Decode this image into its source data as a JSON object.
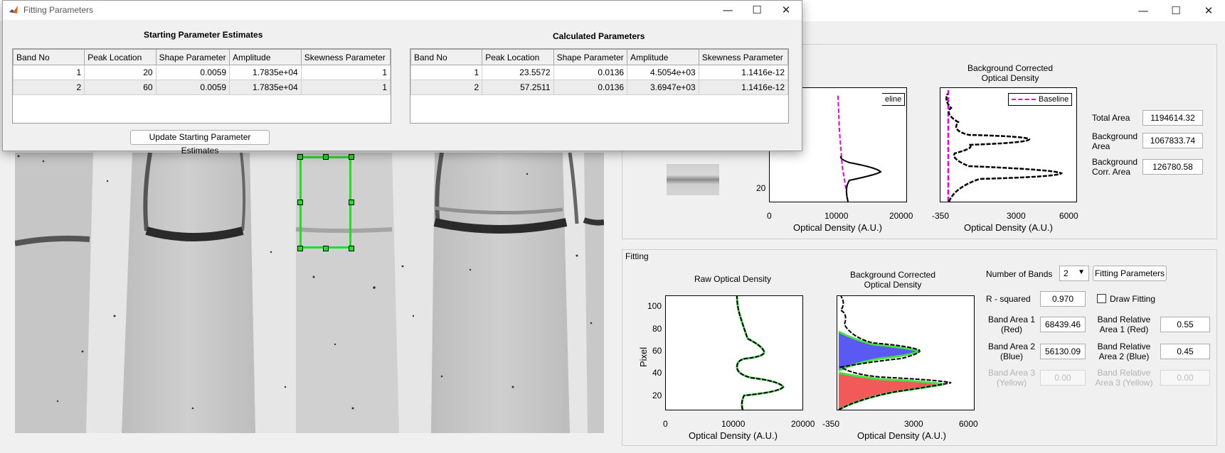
{
  "dialog": {
    "title": "Fitting Parameters",
    "start_title": "Starting Parameter Estimates",
    "calc_title": "Calculated Parameters",
    "columns": [
      "Band No",
      "Peak Location",
      "Shape Parameter",
      "Amplitude",
      "Skewness Parameter"
    ],
    "start_rows": [
      [
        "1",
        "20",
        "0.0059",
        "1.7835e+04",
        "1"
      ],
      [
        "2",
        "60",
        "0.0059",
        "1.7835e+04",
        "1"
      ]
    ],
    "calc_rows": [
      [
        "1",
        "23.5572",
        "0.0136",
        "4.5054e+03",
        "1.1416e-12"
      ],
      [
        "2",
        "57.2511",
        "0.0136",
        "3.6947e+03",
        "1.1416e-12"
      ]
    ],
    "update_button": "Update Starting Parameter Estimates",
    "controls": {
      "minimize": "—",
      "maximize": "☐",
      "close": "✕"
    }
  },
  "main_window": {
    "controls": {
      "minimize": "—",
      "maximize": "☐",
      "close": "✕"
    }
  },
  "top_panel": {
    "bgc_title_line1": "Background Corrected",
    "bgc_title_line2": "Optical Density",
    "legend_partial": "eline",
    "legend_baseline": "Baseline",
    "raw_yticks": [
      "20"
    ],
    "raw_xticks": [
      "0",
      "10000",
      "20000"
    ],
    "bgc_xticks": [
      "-350",
      "3000",
      "6000"
    ],
    "xlabel": "Optical Density (A.U.)",
    "total_area_label": "Total Area",
    "total_area_value": "1194614.32",
    "background_area_label_1": "Background",
    "background_area_label_2": "Area",
    "background_area_value": "1067833.74",
    "bgc_area_label_1": "Background",
    "bgc_area_label_2": "Corr. Area",
    "bgc_area_value": "126780.58"
  },
  "fitting_panel": {
    "title": "Fitting",
    "raw_title": "Raw Optical Density",
    "bgc_title_line1": "Background Corrected",
    "bgc_title_line2": "Optical Density",
    "ylabel": "Pixel",
    "yticks": [
      "100",
      "80",
      "60",
      "40",
      "20"
    ],
    "raw_xticks": [
      "0",
      "10000",
      "20000"
    ],
    "bgc_xticks": [
      "-350",
      "3000",
      "6000"
    ],
    "xlabel": "Optical Density (A.U.)",
    "number_of_bands_label": "Number of Bands",
    "number_of_bands_value": "2",
    "fitting_params_button": "Fitting Parameters",
    "r_squared_label": "R - squared",
    "r_squared_value": "0.970",
    "draw_fitting_label": "Draw Fitting",
    "band_area_1_label_1": "Band Area 1",
    "band_area_1_label_2": "(Red)",
    "band_area_1_value": "68439.46",
    "band_area_2_label_1": "Band Area 2",
    "band_area_2_label_2": "(Blue)",
    "band_area_2_value": "56130.09",
    "band_area_3_label_1": "Band Area 3",
    "band_area_3_label_2": "(Yellow)",
    "band_area_3_value": "0.00",
    "rel_area_1_label_1": "Band Relative",
    "rel_area_1_label_2": "Area 1 (Red)",
    "rel_area_1_value": "0.55",
    "rel_area_2_label_1": "Band Relative",
    "rel_area_2_label_2": "Area 2 (Blue)",
    "rel_area_2_value": "0.45",
    "rel_area_3_label_1": "Band Relative",
    "rel_area_3_label_2": "Area 3 (Yellow)",
    "rel_area_3_value": "0.00"
  },
  "colors": {
    "selection_box": "#22dd22",
    "baseline": "#e400e4",
    "band_red": "#f25a5a",
    "band_blue": "#5a5af2",
    "fit_green": "#44e044"
  }
}
